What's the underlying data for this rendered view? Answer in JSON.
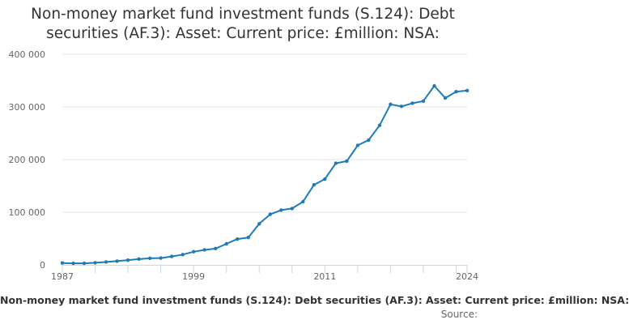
{
  "chart_data": {
    "type": "line",
    "title_lines": [
      "Non-money market fund investment funds (S.124): Debt",
      "securities (AF.3): Asset: Current price: £million: NSA:"
    ],
    "series": [
      {
        "name": "Non-money market fund investment funds (S.124): Debt securities (AF.3): Asset: Current price: £million: NSA:",
        "color": "#1f7ab8",
        "x": [
          1987,
          1988,
          1989,
          1990,
          1991,
          1992,
          1993,
          1994,
          1995,
          1996,
          1997,
          1998,
          1999,
          2000,
          2001,
          2002,
          2003,
          2004,
          2005,
          2006,
          2007,
          2008,
          2009,
          2010,
          2011,
          2012,
          2013,
          2014,
          2015,
          2016,
          2017,
          2018,
          2019,
          2020,
          2021,
          2022,
          2023,
          2024
        ],
        "values": [
          3500,
          3000,
          3000,
          4000,
          5500,
          7000,
          9000,
          11000,
          12500,
          13000,
          16000,
          19500,
          25000,
          28500,
          31000,
          40000,
          49000,
          52000,
          78000,
          96000,
          104000,
          107000,
          120000,
          152000,
          163000,
          193000,
          197000,
          227000,
          237000,
          265000,
          305000,
          301000,
          307000,
          311000,
          340000,
          317000,
          329000,
          331000
        ]
      }
    ],
    "y_ticks": [
      0,
      100000,
      200000,
      300000,
      400000
    ],
    "y_tick_labels": [
      "0",
      "100 000",
      "200 000",
      "300 000",
      "400 000"
    ],
    "x_ticks": [
      1987,
      1999,
      2011,
      2024
    ],
    "x_tick_labels": [
      "1987",
      "1999",
      "2011",
      "2024"
    ],
    "ylim": [
      0,
      400000
    ],
    "xlim": [
      1987,
      2024
    ],
    "grid": true,
    "legend_position": "bottom",
    "legend_label": "Non-money market fund investment funds (S.124): Debt securities (AF.3): Asset: Current price: £million: NSA:",
    "credit": "Source:"
  }
}
